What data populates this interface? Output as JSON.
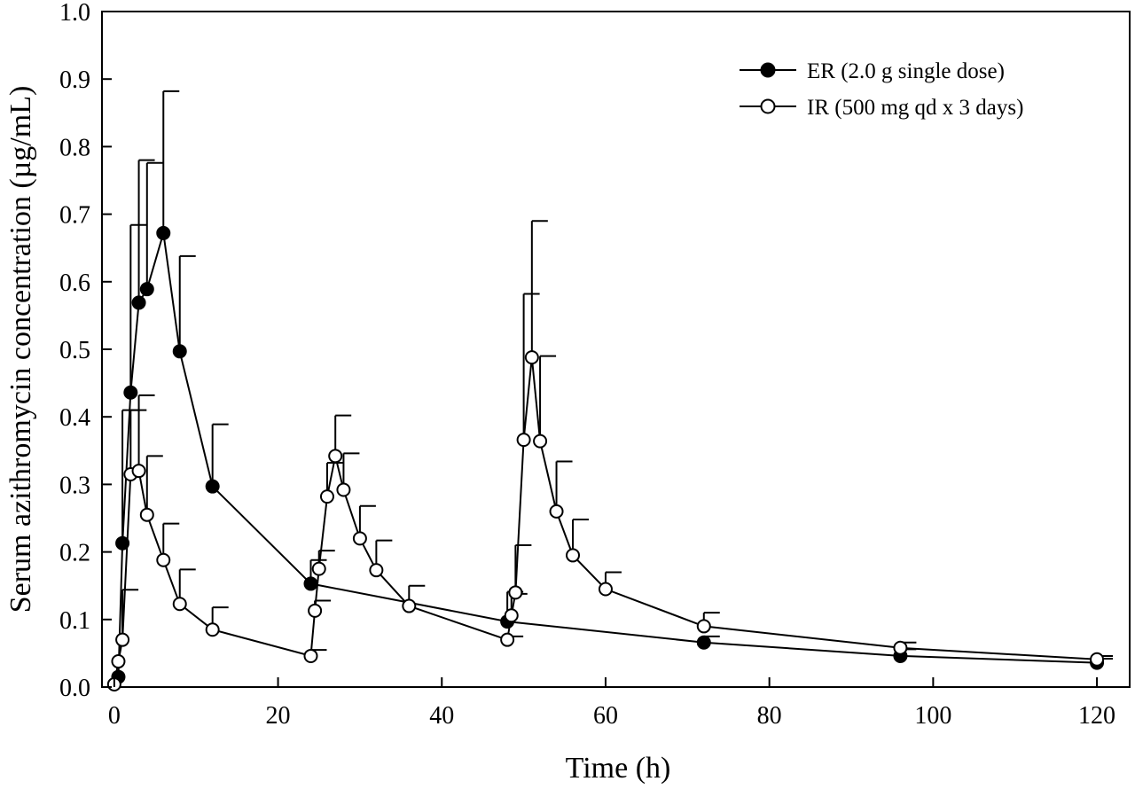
{
  "chart_data": {
    "type": "line",
    "title": "",
    "xlabel": "Time (h)",
    "ylabel": "Serum azithromycin concentration (µg/mL)",
    "xlim": [
      -1.5,
      124
    ],
    "ylim": [
      0,
      1.0
    ],
    "xticks": [
      0,
      20,
      40,
      60,
      80,
      100,
      120
    ],
    "xtick_labels": [
      "0",
      "20",
      "40",
      "60",
      "80",
      "100",
      "120"
    ],
    "yticks": [
      0,
      0.1,
      0.2,
      0.3,
      0.4,
      0.5,
      0.6,
      0.7,
      0.8,
      0.9,
      1.0
    ],
    "ytick_labels": [
      "0.0",
      "0.1",
      "0.2",
      "0.3",
      "0.4",
      "0.5",
      "0.6",
      "0.7",
      "0.8",
      "0.9",
      "1.0"
    ],
    "grid": false,
    "legend_position": "top-right",
    "series": [
      {
        "name": "ER (2.0 g single dose)",
        "marker": "filled-circle",
        "color": "#000000",
        "x": [
          0.5,
          1,
          2,
          3,
          4,
          6,
          8,
          12,
          24,
          48,
          72,
          96,
          120
        ],
        "y": [
          0.015,
          0.213,
          0.436,
          0.569,
          0.589,
          0.672,
          0.497,
          0.297,
          0.153,
          0.097,
          0.066,
          0.046,
          0.036
        ],
        "error_upper": [
          null,
          0.41,
          0.684,
          0.78,
          0.776,
          0.882,
          0.638,
          0.389,
          0.188,
          0.141,
          0.075,
          0.056,
          0.042
        ]
      },
      {
        "name": "IR (500 mg qd x 3 days)",
        "marker": "open-circle",
        "color": "#000000",
        "x": [
          0,
          0.5,
          1,
          2,
          3,
          4,
          6,
          8,
          12,
          24,
          24.5,
          25,
          26,
          27,
          28,
          30,
          32,
          36,
          48,
          48.5,
          49,
          50,
          51,
          52,
          54,
          56,
          60,
          72,
          96,
          120
        ],
        "y": [
          0.004,
          0.038,
          0.07,
          0.315,
          0.32,
          0.255,
          0.188,
          0.123,
          0.085,
          0.046,
          0.113,
          0.175,
          0.282,
          0.342,
          0.292,
          0.22,
          0.173,
          0.12,
          0.07,
          0.106,
          0.14,
          0.366,
          0.488,
          0.364,
          0.26,
          0.195,
          0.145,
          0.09,
          0.058,
          0.041
        ],
        "error_upper": [
          null,
          null,
          0.144,
          0.41,
          0.432,
          0.342,
          0.242,
          0.174,
          0.118,
          0.055,
          0.128,
          0.202,
          0.332,
          0.402,
          0.346,
          0.268,
          0.217,
          0.15,
          0.075,
          0.138,
          0.21,
          0.582,
          0.69,
          0.49,
          0.334,
          0.248,
          0.17,
          0.11,
          0.066,
          0.046
        ]
      }
    ]
  }
}
